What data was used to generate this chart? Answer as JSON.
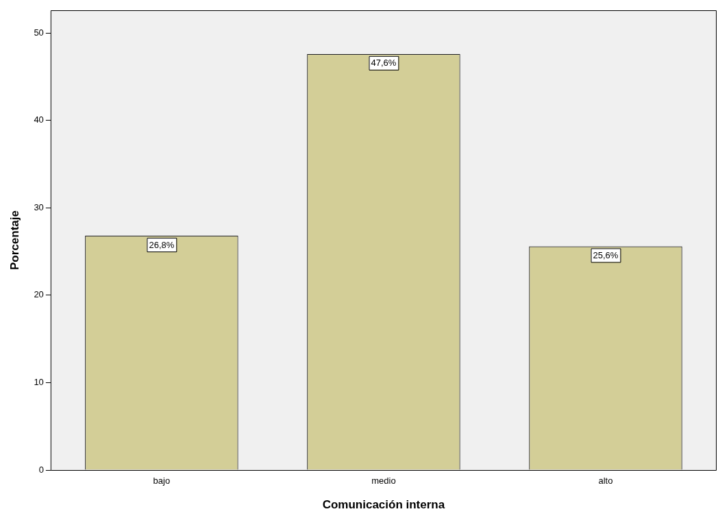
{
  "chart_data": {
    "type": "bar",
    "xlabel": "Comunicación interna",
    "ylabel": "Porcentaje",
    "categories": [
      "bajo",
      "medio",
      "alto"
    ],
    "values": [
      26.8,
      47.6,
      25.6
    ],
    "value_labels": [
      "26,8%",
      "47,6%",
      "25,6%"
    ],
    "color": "#d3ce97",
    "ylim": [
      0,
      52.6
    ],
    "yticks": [
      0,
      10,
      20,
      30,
      40,
      50
    ],
    "grid": false,
    "legend": false
  }
}
